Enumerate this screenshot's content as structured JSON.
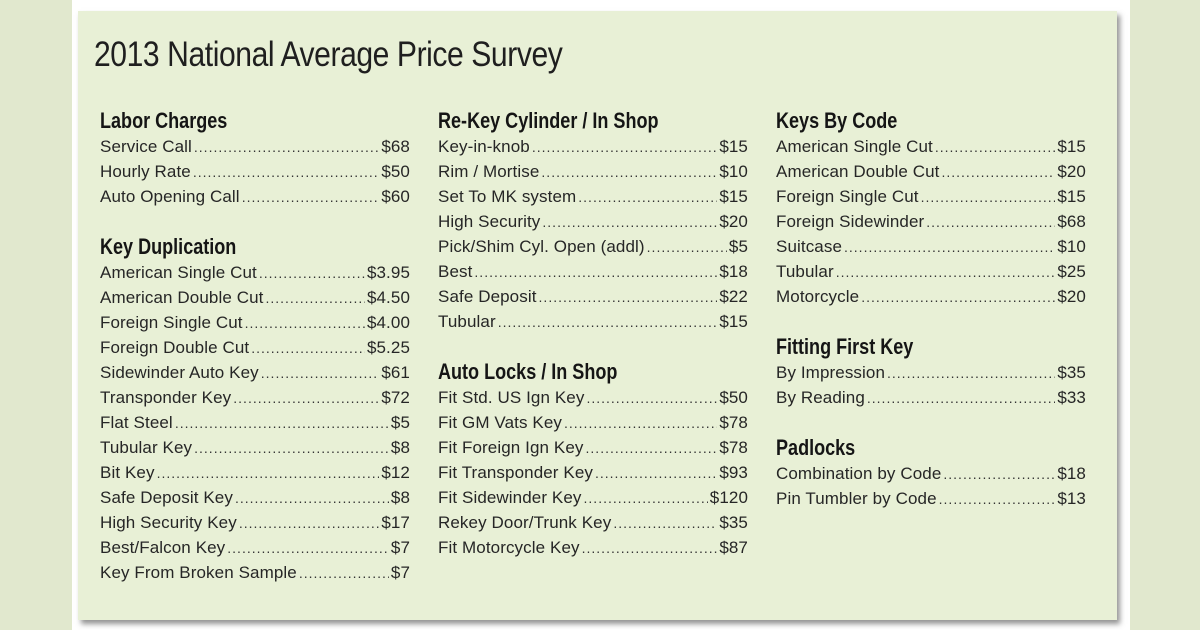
{
  "title": "2013 National Average Price Survey",
  "columns": [
    {
      "sections": [
        {
          "heading": "Labor Charges",
          "items": [
            {
              "label": "Service Call",
              "price": "$68"
            },
            {
              "label": "Hourly Rate",
              "price": "$50"
            },
            {
              "label": "Auto Opening Call",
              "price": "$60"
            }
          ]
        },
        {
          "heading": "Key Duplication",
          "items": [
            {
              "label": "American Single Cut",
              "price": "$3.95"
            },
            {
              "label": "American Double Cut",
              "price": "$4.50"
            },
            {
              "label": "Foreign Single Cut",
              "price": "$4.00"
            },
            {
              "label": "Foreign Double Cut",
              "price": "$5.25"
            },
            {
              "label": "Sidewinder Auto Key",
              "price": "$61"
            },
            {
              "label": "Transponder Key",
              "price": "$72"
            },
            {
              "label": "Flat Steel",
              "price": "$5"
            },
            {
              "label": "Tubular Key",
              "price": "$8"
            },
            {
              "label": "Bit Key",
              "price": "$12"
            },
            {
              "label": "Safe Deposit Key",
              "price": "$8"
            },
            {
              "label": "High Security Key",
              "price": "$17"
            },
            {
              "label": "Best/Falcon Key",
              "price": "$7"
            },
            {
              "label": "Key From Broken Sample",
              "price": "$7"
            }
          ]
        }
      ]
    },
    {
      "sections": [
        {
          "heading": "Re-Key Cylinder / In Shop",
          "items": [
            {
              "label": "Key-in-knob",
              "price": "$15"
            },
            {
              "label": "Rim / Mortise",
              "price": "$10"
            },
            {
              "label": "Set To MK system",
              "price": "$15"
            },
            {
              "label": "High Security",
              "price": "$20"
            },
            {
              "label": "Pick/Shim Cyl. Open (addl)",
              "price": "$5"
            },
            {
              "label": "Best",
              "price": "$18"
            },
            {
              "label": "Safe Deposit",
              "price": "$22"
            },
            {
              "label": "Tubular",
              "price": "$15"
            }
          ]
        },
        {
          "heading": "Auto Locks / In Shop",
          "items": [
            {
              "label": "Fit Std. US Ign Key",
              "price": "$50"
            },
            {
              "label": "Fit GM Vats Key",
              "price": "$78"
            },
            {
              "label": "Fit Foreign Ign Key",
              "price": "$78"
            },
            {
              "label": "Fit Transponder Key",
              "price": "$93"
            },
            {
              "label": "Fit Sidewinder Key",
              "price": "$120"
            },
            {
              "label": "Rekey Door/Trunk Key",
              "price": "$35"
            },
            {
              "label": "Fit Motorcycle Key",
              "price": "$87"
            }
          ]
        }
      ]
    },
    {
      "sections": [
        {
          "heading": "Keys By Code",
          "items": [
            {
              "label": "American Single Cut",
              "price": "$15"
            },
            {
              "label": "American Double Cut",
              "price": "$20"
            },
            {
              "label": "Foreign Single Cut",
              "price": "$15"
            },
            {
              "label": "Foreign Sidewinder",
              "price": "$68"
            },
            {
              "label": "Suitcase",
              "price": "$10"
            },
            {
              "label": "Tubular",
              "price": "$25"
            },
            {
              "label": "Motorcycle",
              "price": "$20"
            }
          ]
        },
        {
          "heading": "Fitting First Key",
          "items": [
            {
              "label": "By Impression",
              "price": "$35"
            },
            {
              "label": "By Reading",
              "price": "$33"
            }
          ]
        },
        {
          "heading": "Padlocks",
          "items": [
            {
              "label": "Combination by Code",
              "price": "$18"
            },
            {
              "label": "Pin Tumbler by Code",
              "price": "$13"
            }
          ]
        }
      ]
    }
  ],
  "colors": {
    "outer_background": "#e1e8ce",
    "panel_background": "#e8f0d6",
    "text": "#1e1e1e"
  }
}
